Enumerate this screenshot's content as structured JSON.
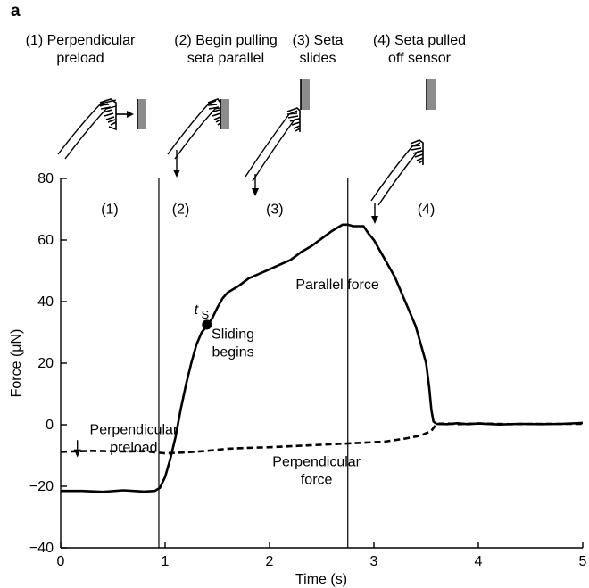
{
  "panel_label": "a",
  "steps": [
    {
      "lines": [
        "(1) Perpendicular",
        "preload"
      ]
    },
    {
      "lines": [
        "(2) Begin pulling",
        "seta parallel"
      ]
    },
    {
      "lines": [
        "(3) Seta",
        "slides"
      ]
    },
    {
      "lines": [
        "(4) Seta pulled",
        "off sensor"
      ]
    }
  ],
  "chart_data": {
    "type": "line",
    "xlabel": "Time (s)",
    "ylabel": "Force (μN)",
    "xlim": [
      0,
      5
    ],
    "ylim": [
      -40,
      80
    ],
    "x_ticks": [
      0,
      1,
      2,
      3,
      4,
      5
    ],
    "y_ticks": [
      -40,
      -20,
      0,
      20,
      40,
      60,
      80
    ],
    "x_tick_labels": [
      "0",
      "1",
      "2",
      "3",
      "4",
      "5"
    ],
    "y_tick_labels": [
      "−40",
      "−20",
      "0",
      "20",
      "40",
      "60",
      "80"
    ],
    "grid": false,
    "phase_boundaries": [
      0.94,
      2.75
    ],
    "region_labels": [
      {
        "text": "(1)",
        "x": 0.47,
        "y": 70
      },
      {
        "text": "(2)",
        "x": 1.15,
        "y": 70
      },
      {
        "text": "(3)",
        "x": 2.05,
        "y": 70
      },
      {
        "text": "(4)",
        "x": 3.5,
        "y": 70
      }
    ],
    "series": [
      {
        "name": "Parallel force",
        "style": "solid",
        "x": [
          0.0,
          0.2,
          0.4,
          0.6,
          0.8,
          0.9,
          0.95,
          1.0,
          1.05,
          1.1,
          1.15,
          1.2,
          1.25,
          1.3,
          1.35,
          1.4,
          1.45,
          1.5,
          1.55,
          1.6,
          1.7,
          1.8,
          1.9,
          2.0,
          2.1,
          2.2,
          2.3,
          2.4,
          2.5,
          2.6,
          2.7,
          2.75,
          2.8,
          2.9,
          2.95,
          3.0,
          3.05,
          3.1,
          3.15,
          3.2,
          3.25,
          3.3,
          3.35,
          3.4,
          3.45,
          3.5,
          3.53,
          3.55,
          3.57,
          3.6,
          3.7,
          3.8,
          3.9,
          4.0,
          4.2,
          4.4,
          4.6,
          4.8,
          5.0
        ],
        "y": [
          -21.5,
          -21.5,
          -21.8,
          -21.3,
          -21.7,
          -21.5,
          -20.5,
          -17,
          -11,
          -4,
          5,
          13,
          20,
          26,
          30,
          32,
          34.5,
          38,
          41,
          43,
          45,
          47.5,
          49,
          50.5,
          52,
          53.5,
          56,
          58,
          60.5,
          63,
          65,
          65,
          64.5,
          64.5,
          62,
          60,
          57,
          54,
          51,
          48,
          44,
          40,
          36,
          32,
          26,
          20,
          12,
          5,
          1,
          0.3,
          0.2,
          0.5,
          0.2,
          0.4,
          0.1,
          0.3,
          0.2,
          0.3,
          0.6
        ]
      },
      {
        "name": "Perpendicular force",
        "style": "dashed",
        "x": [
          0.0,
          0.3,
          0.6,
          0.8,
          1.0,
          1.2,
          1.4,
          1.6,
          1.8,
          2.0,
          2.2,
          2.5,
          2.8,
          3.1,
          3.3,
          3.45,
          3.55,
          3.6,
          3.7,
          3.8,
          4.0,
          4.3,
          4.6,
          5.0
        ],
        "y": [
          -8.8,
          -8.5,
          -8.7,
          -8.6,
          -9.3,
          -9.0,
          -8.5,
          -7.8,
          -7.5,
          -7.3,
          -7.0,
          -6.5,
          -6.0,
          -5.5,
          -4.5,
          -3.5,
          -2.0,
          0.3,
          0.4,
          0.2,
          0.4,
          0.2,
          0.3,
          0.3
        ]
      }
    ],
    "annotations": [
      {
        "lines": [
          "Perpendicular",
          "preload"
        ],
        "x": 0.7,
        "y": -3
      },
      {
        "lines": [
          "Parallel force"
        ],
        "x": 2.65,
        "y": 44
      },
      {
        "lines": [
          "Sliding",
          "begins"
        ],
        "x": 1.65,
        "y": 28
      },
      {
        "lines": [
          "Perpendicular",
          "force"
        ],
        "x": 2.45,
        "y": -13.5
      }
    ],
    "event_marker": {
      "label": "t",
      "subscript": "S",
      "x": 1.4,
      "y": 32.5
    },
    "colors": {
      "lines": "#000000",
      "sensor": "#8c8c8c"
    }
  }
}
